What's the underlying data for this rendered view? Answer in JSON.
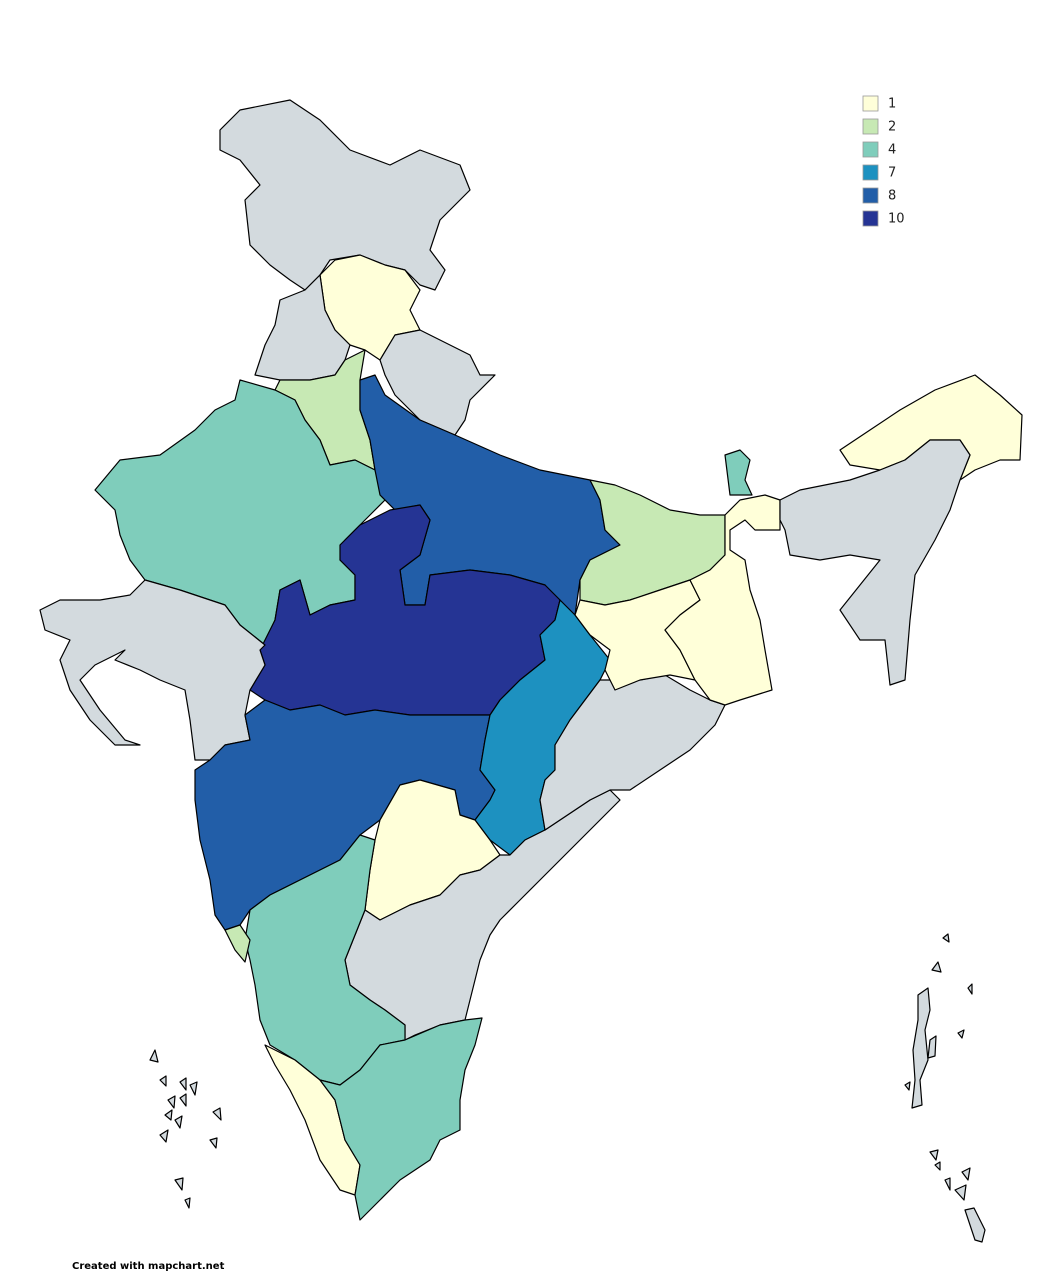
{
  "legend": {
    "items": [
      {
        "value": 1,
        "color": "#ffffd9"
      },
      {
        "value": 2,
        "color": "#c7e9b4"
      },
      {
        "value": 4,
        "color": "#7fcdbb"
      },
      {
        "value": 7,
        "color": "#1d91c0"
      },
      {
        "value": 8,
        "color": "#225ea8"
      },
      {
        "value": 10,
        "color": "#253494"
      }
    ]
  },
  "footer": "Created with mapchart.net"
}
